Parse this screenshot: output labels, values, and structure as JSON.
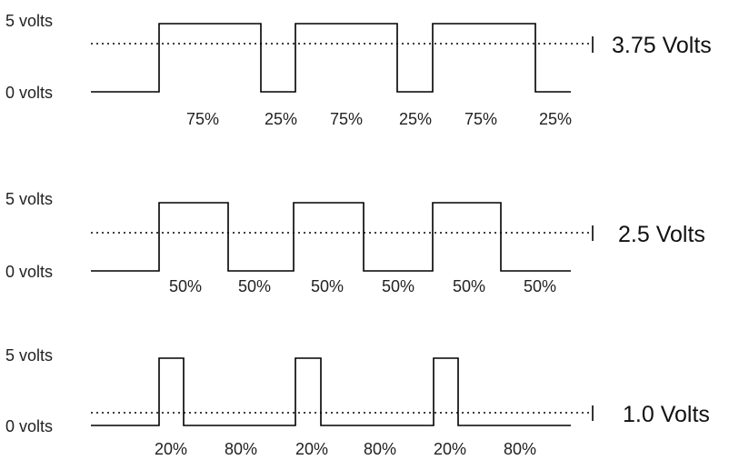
{
  "panels": [
    {
      "id": "duty-75",
      "high_label": "5 volts",
      "low_label": "0 volts",
      "average_label": "3.75 Volts",
      "average_volts": 3.75,
      "high_volts": 5,
      "duty_cycle": 0.75,
      "percent_labels": [
        "75%",
        "25%",
        "75%",
        "25%",
        "75%",
        "25%"
      ]
    },
    {
      "id": "duty-50",
      "high_label": "5 volts",
      "low_label": "0 volts",
      "average_label": "2.5 Volts",
      "average_volts": 2.5,
      "high_volts": 5,
      "duty_cycle": 0.5,
      "percent_labels": [
        "50%",
        "50%",
        "50%",
        "50%",
        "50%",
        "50%"
      ]
    },
    {
      "id": "duty-20",
      "high_label": "5 volts",
      "low_label": "0 volts",
      "average_label": "1.0 Volts",
      "average_volts": 1.0,
      "high_volts": 5,
      "duty_cycle": 0.2,
      "percent_labels": [
        "20%",
        "80%",
        "20%",
        "80%",
        "20%",
        "80%"
      ]
    }
  ]
}
